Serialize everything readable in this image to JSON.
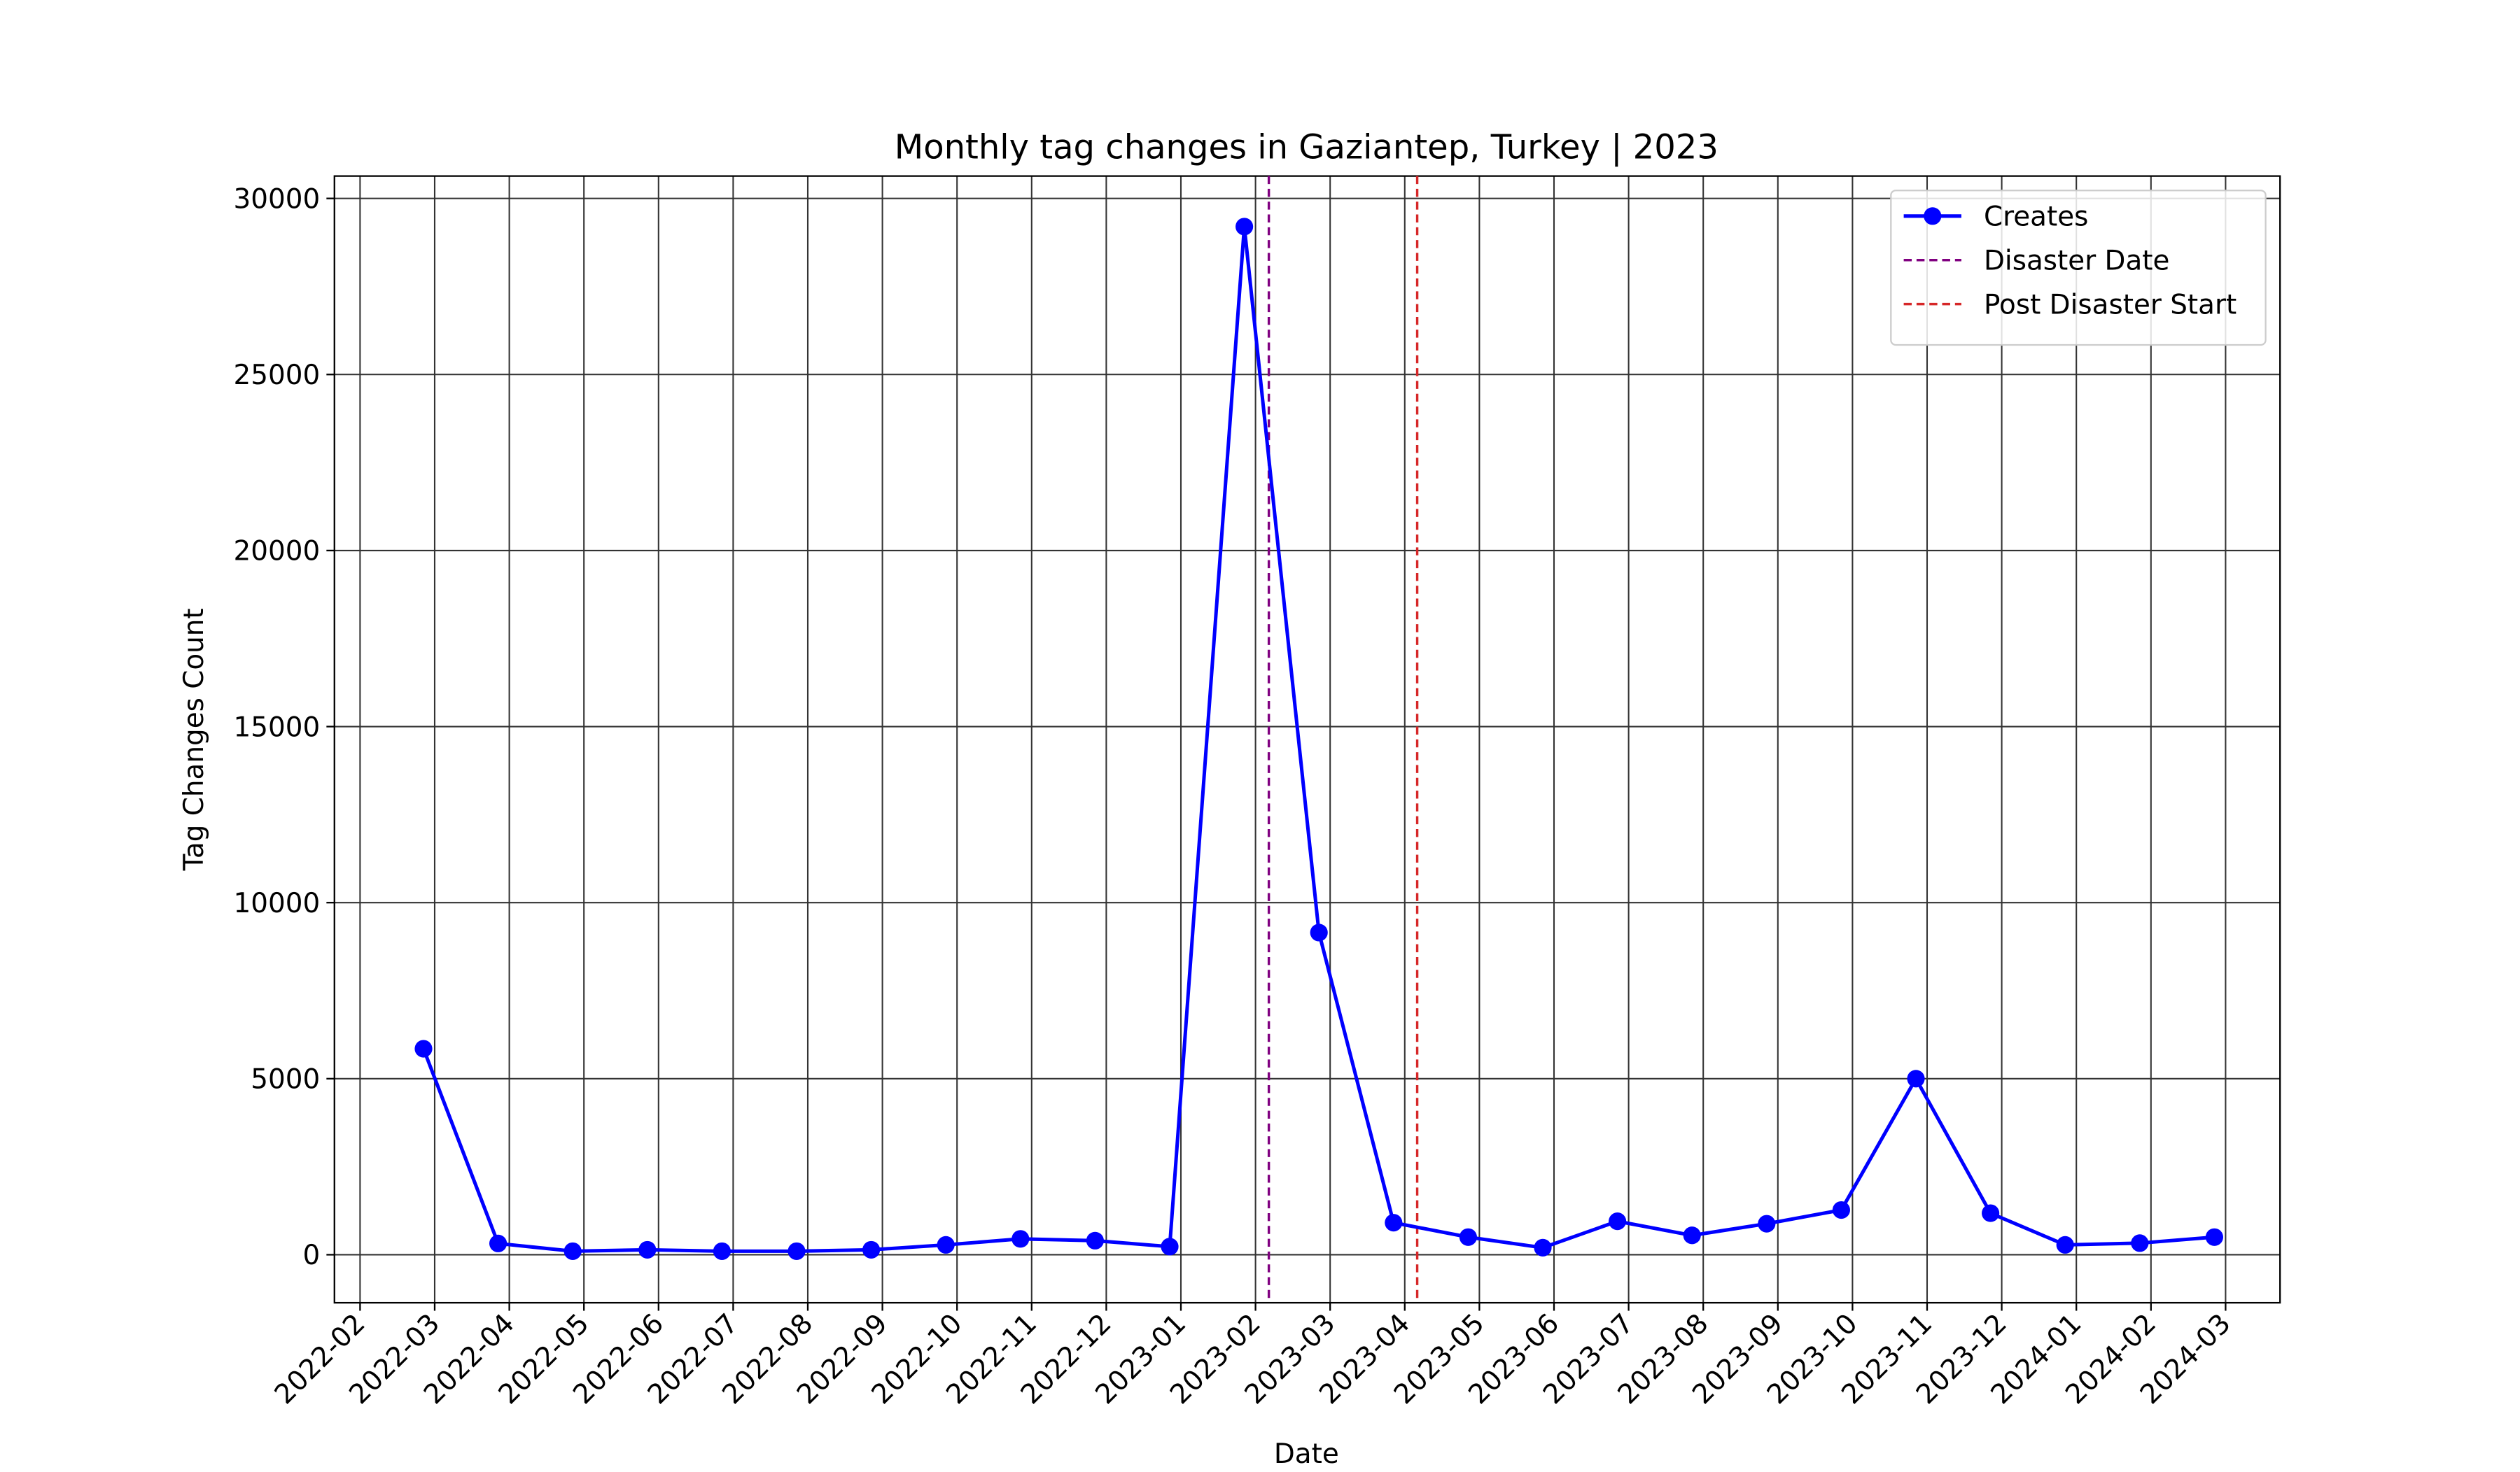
{
  "chart_data": {
    "type": "line",
    "title": "Monthly tag changes in Gaziantep, Turkey | 2023",
    "xlabel": "Date",
    "ylabel": "Tag Changes Count",
    "x": [
      "2022-02",
      "2022-03",
      "2022-04",
      "2022-05",
      "2022-06",
      "2022-07",
      "2022-08",
      "2022-09",
      "2022-10",
      "2022-11",
      "2022-12",
      "2023-01",
      "2023-02",
      "2023-03",
      "2023-04",
      "2023-05",
      "2023-06",
      "2023-07",
      "2023-08",
      "2023-09",
      "2023-10",
      "2023-11",
      "2023-12",
      "2024-01",
      "2024-02"
    ],
    "series": [
      {
        "name": "Creates",
        "color": "#0000ff",
        "values": [
          5850,
          320,
          100,
          140,
          100,
          100,
          140,
          280,
          450,
          400,
          230,
          29200,
          9150,
          910,
          500,
          200,
          950,
          550,
          880,
          1270,
          5000,
          1180,
          280,
          330,
          500
        ]
      }
    ],
    "vlines": [
      {
        "name": "Disaster Date",
        "x": "2023-02-06",
        "color": "#800080"
      },
      {
        "name": "Post Disaster Start",
        "x": "2023-04-06",
        "color": "#d62728"
      }
    ],
    "xlim": [
      "2022-02",
      "2024-03"
    ],
    "xticks": [
      "2022-02",
      "2022-03",
      "2022-04",
      "2022-05",
      "2022-06",
      "2022-07",
      "2022-08",
      "2022-09",
      "2022-10",
      "2022-11",
      "2022-12",
      "2023-01",
      "2023-02",
      "2023-03",
      "2023-04",
      "2023-05",
      "2023-06",
      "2023-07",
      "2023-08",
      "2023-09",
      "2023-10",
      "2023-11",
      "2023-12",
      "2024-01",
      "2024-02",
      "2024-03"
    ],
    "ylim": [
      -1364,
      30636
    ],
    "yticks": [
      0,
      5000,
      10000,
      15000,
      20000,
      25000,
      30000
    ],
    "grid": true,
    "legend": "upper right"
  }
}
